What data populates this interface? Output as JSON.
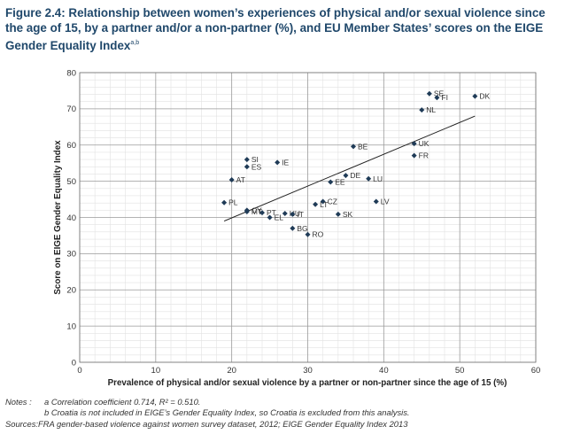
{
  "figure": {
    "title_main": "Figure 2.4: Relationship between women’s experiences of physical and/or sexual violence since the age of 15, by a partner and/or a non-partner (%), and EU Member States’ scores on the EIGE Gender Equality Index",
    "title_sup": "a,b"
  },
  "chart_data": {
    "type": "scatter",
    "xlabel": "Prevalence of physical and/or sexual violence by a partner or non-partner since the age of 15 (%)",
    "ylabel": "Score on EIGE Gender Equality Index",
    "xlim": [
      0,
      60
    ],
    "ylim": [
      0,
      80
    ],
    "x_ticks": [
      0,
      10,
      20,
      30,
      40,
      50,
      60
    ],
    "y_ticks": [
      0,
      10,
      20,
      30,
      40,
      50,
      60,
      70,
      80
    ],
    "grid_major_x": 10,
    "grid_major_y": 10,
    "grid_minor_x": 2,
    "grid_minor_y": 2,
    "marker_color": "#1f3b57",
    "trendline": {
      "x": [
        19,
        52
      ],
      "y": [
        39,
        68
      ]
    },
    "points": [
      {
        "label": "SE",
        "x": 46,
        "y": 74.2
      },
      {
        "label": "FI",
        "x": 47,
        "y": 73.1
      },
      {
        "label": "DK",
        "x": 52,
        "y": 73.5
      },
      {
        "label": "NL",
        "x": 45,
        "y": 69.7
      },
      {
        "label": "UK",
        "x": 44,
        "y": 60.4
      },
      {
        "label": "FR",
        "x": 44,
        "y": 57.1
      },
      {
        "label": "BE",
        "x": 36,
        "y": 59.6
      },
      {
        "label": "SI",
        "x": 22,
        "y": 56.0
      },
      {
        "label": "ES",
        "x": 22,
        "y": 54.0
      },
      {
        "label": "IE",
        "x": 26,
        "y": 55.2
      },
      {
        "label": "AT",
        "x": 20,
        "y": 50.4
      },
      {
        "label": "DE",
        "x": 35,
        "y": 51.6
      },
      {
        "label": "EE",
        "x": 33,
        "y": 49.8
      },
      {
        "label": "LU",
        "x": 38,
        "y": 50.7
      },
      {
        "label": "CZ",
        "x": 32,
        "y": 44.4
      },
      {
        "label": "LT",
        "x": 31,
        "y": 43.6
      },
      {
        "label": "LV",
        "x": 39,
        "y": 44.4
      },
      {
        "label": "SK",
        "x": 34,
        "y": 40.9
      },
      {
        "label": "PL",
        "x": 19,
        "y": 44.1
      },
      {
        "label": "CY",
        "x": 22,
        "y": 42.0
      },
      {
        "label": "MT",
        "x": 22,
        "y": 41.6
      },
      {
        "label": "PT",
        "x": 24,
        "y": 41.3
      },
      {
        "label": "EL",
        "x": 25,
        "y": 40.0
      },
      {
        "label": "HU",
        "x": 27,
        "y": 41.1
      },
      {
        "label": "IT",
        "x": 28,
        "y": 40.9
      },
      {
        "label": "BG",
        "x": 28,
        "y": 37.0
      },
      {
        "label": "RO",
        "x": 30,
        "y": 35.3
      }
    ]
  },
  "notes": {
    "a_prefix": "Notes :",
    "a_text": "a  Correlation coefficient 0.714, R² = 0.510.",
    "b_text": "b  Croatia is not included in EIGE’s Gender Equality Index, so Croatia is excluded from this analysis.",
    "sources_prefix": "Sources:",
    "sources_text": "FRA gender-based violence against women survey dataset, 2012; EIGE Gender Equality Index 2013"
  }
}
